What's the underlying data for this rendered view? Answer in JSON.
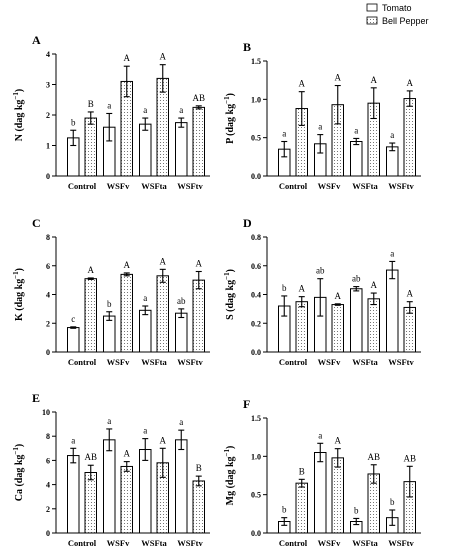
{
  "legend": [
    {
      "name": "Tomato",
      "fill": "#ffffff"
    },
    {
      "name": "Bell Pepper",
      "fill": "dots"
    }
  ],
  "colors": {
    "stroke": "#000000",
    "dots": "#555555",
    "background": "#ffffff"
  },
  "chart_data": [
    {
      "type": "bar",
      "panel": "A",
      "ylabel_main": "N",
      "ylabel_unit": "(dag kg",
      "ylabel_exp": "−1",
      "ylabel_close": ")",
      "categories": [
        "Control",
        "WSFv",
        "WSFta",
        "WSFtv"
      ],
      "ylim": [
        0,
        4
      ],
      "yticks": [
        "0",
        "1",
        "2",
        "3",
        "4"
      ],
      "series": [
        {
          "name": "Tomato",
          "values": [
            1.25,
            1.6,
            1.7,
            1.75
          ],
          "errors": [
            0.25,
            0.45,
            0.2,
            0.15
          ],
          "letters": [
            "b",
            "a",
            "a",
            "a"
          ]
        },
        {
          "name": "Bell Pepper",
          "values": [
            1.9,
            3.1,
            3.2,
            2.25
          ],
          "errors": [
            0.2,
            0.5,
            0.45,
            0.05
          ],
          "letters": [
            "B",
            "A",
            "A",
            "AB"
          ]
        }
      ]
    },
    {
      "type": "bar",
      "panel": "B",
      "ylabel_main": "P",
      "ylabel_unit": "(dag kg",
      "ylabel_exp": "−1",
      "ylabel_close": ")",
      "categories": [
        "Control",
        "WSFv",
        "WSFta",
        "WSFtv"
      ],
      "ylim": [
        0,
        1.5
      ],
      "yticks": [
        "0.0",
        "0.5",
        "1.0",
        "1.5"
      ],
      "series": [
        {
          "name": "Tomato",
          "values": [
            0.35,
            0.42,
            0.45,
            0.38
          ],
          "errors": [
            0.1,
            0.12,
            0.04,
            0.05
          ],
          "letters": [
            "a",
            "a",
            "a",
            "a"
          ]
        },
        {
          "name": "Bell Pepper",
          "values": [
            0.88,
            0.93,
            0.95,
            1.01
          ],
          "errors": [
            0.22,
            0.25,
            0.2,
            0.1
          ],
          "letters": [
            "A",
            "A",
            "A",
            "A"
          ]
        }
      ]
    },
    {
      "type": "bar",
      "panel": "C",
      "ylabel_main": "K",
      "ylabel_unit": "(dag kg",
      "ylabel_exp": "−1",
      "ylabel_close": ")",
      "categories": [
        "Control",
        "WSFv",
        "WSFta",
        "WSFtv"
      ],
      "ylim": [
        0,
        8
      ],
      "yticks": [
        "0",
        "2",
        "4",
        "6",
        "8"
      ],
      "series": [
        {
          "name": "Tomato",
          "values": [
            1.7,
            2.5,
            2.9,
            2.7
          ],
          "errors": [
            0.05,
            0.3,
            0.3,
            0.3
          ],
          "letters": [
            "c",
            "b",
            "a",
            "ab"
          ]
        },
        {
          "name": "Bell Pepper",
          "values": [
            5.1,
            5.4,
            5.3,
            5.0
          ],
          "errors": [
            0.05,
            0.1,
            0.45,
            0.6
          ],
          "letters": [
            "A",
            "A",
            "A",
            "A"
          ]
        }
      ]
    },
    {
      "type": "bar",
      "panel": "D",
      "ylabel_main": "S",
      "ylabel_unit": "(dag kg",
      "ylabel_exp": "−1",
      "ylabel_close": ")",
      "categories": [
        "Control",
        "WSFv",
        "WSFta",
        "WSFtv"
      ],
      "ylim": [
        0,
        0.8
      ],
      "yticks": [
        "0.0",
        "0.2",
        "0.4",
        "0.6",
        "0.8"
      ],
      "series": [
        {
          "name": "Tomato",
          "values": [
            0.32,
            0.38,
            0.44,
            0.57
          ],
          "errors": [
            0.07,
            0.13,
            0.015,
            0.06
          ],
          "letters": [
            "b",
            "ab",
            "ab",
            "a"
          ]
        },
        {
          "name": "Bell Pepper",
          "values": [
            0.35,
            0.33,
            0.37,
            0.31
          ],
          "errors": [
            0.035,
            0.005,
            0.04,
            0.04
          ],
          "letters": [
            "A",
            "A",
            "A",
            "A"
          ]
        }
      ]
    },
    {
      "type": "bar",
      "panel": "E",
      "ylabel_main": "Ca",
      "ylabel_unit": "(dag kg",
      "ylabel_exp": "−1",
      "ylabel_close": ")",
      "categories": [
        "Control",
        "WSFv",
        "WSFta",
        "WSFtv"
      ],
      "ylim": [
        0,
        10
      ],
      "yticks": [
        "0",
        "2",
        "4",
        "6",
        "8",
        "10"
      ],
      "series": [
        {
          "name": "Tomato",
          "values": [
            6.4,
            7.7,
            6.9,
            7.7
          ],
          "errors": [
            0.6,
            0.9,
            0.9,
            0.8
          ],
          "letters": [
            "a",
            "a",
            "a",
            "a"
          ]
        },
        {
          "name": "Bell Pepper",
          "values": [
            5.0,
            5.5,
            5.8,
            4.3
          ],
          "errors": [
            0.6,
            0.4,
            1.2,
            0.4
          ],
          "letters": [
            "AB",
            "A",
            "A",
            "B"
          ]
        }
      ]
    },
    {
      "type": "bar",
      "panel": "F",
      "ylabel_main": "Mg",
      "ylabel_unit": "(dag kg",
      "ylabel_exp": "−1",
      "ylabel_close": ")",
      "categories": [
        "Control",
        "WSFv",
        "WSFta",
        "WSFtv"
      ],
      "ylim": [
        0,
        1.5
      ],
      "yticks": [
        "0.0",
        "0.5",
        "1.0",
        "1.5"
      ],
      "series": [
        {
          "name": "Tomato",
          "values": [
            0.15,
            1.05,
            0.15,
            0.2
          ],
          "errors": [
            0.05,
            0.12,
            0.04,
            0.1
          ],
          "letters": [
            "b",
            "a",
            "b",
            "b"
          ]
        },
        {
          "name": "Bell Pepper",
          "values": [
            0.65,
            0.98,
            0.77,
            0.67
          ],
          "errors": [
            0.05,
            0.12,
            0.12,
            0.2
          ],
          "letters": [
            "B",
            "A",
            "AB",
            "AB"
          ]
        }
      ]
    }
  ]
}
